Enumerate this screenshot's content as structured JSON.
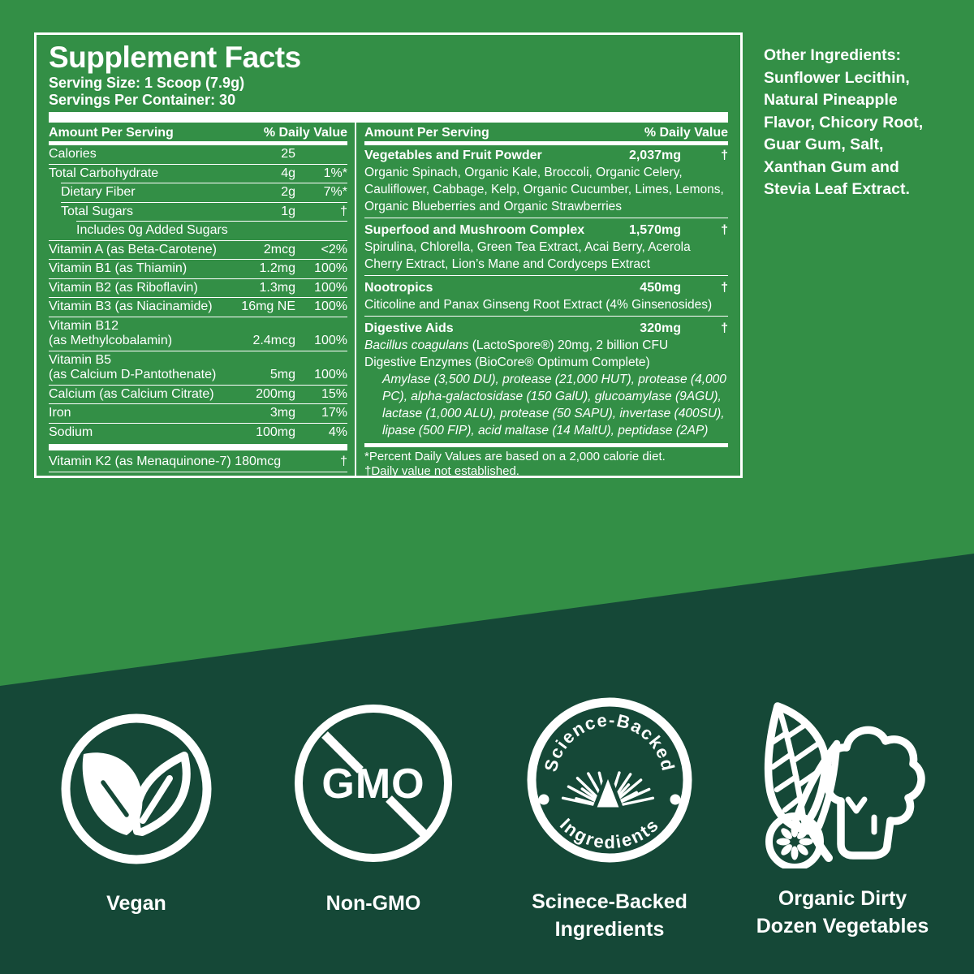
{
  "colors": {
    "background_green": "#338F46",
    "dark_green": "#154837",
    "white": "#FFFFFF"
  },
  "panel": {
    "title": "Supplement Facts",
    "serving_size": "Serving Size: 1 Scoop (7.9g)",
    "servings_per_container": "Servings Per Container: 30",
    "col_header_amount": "Amount Per Serving",
    "col_header_dv": "% Daily Value",
    "left_rows": [
      {
        "name": "Calories",
        "amount": "25",
        "dv": ""
      },
      {
        "name": "Total Carbohydrate",
        "amount": "4g",
        "dv": "1%*"
      },
      {
        "name": "Dietary Fiber",
        "amount": "2g",
        "dv": "7%*"
      },
      {
        "name": "Total Sugars",
        "amount": "1g",
        "dv": "†"
      },
      {
        "name": "Includes 0g Added Sugars",
        "amount": "",
        "dv": ""
      },
      {
        "name": "Vitamin A (as Beta-Carotene)",
        "amount": "2mcg",
        "dv": "<2%"
      },
      {
        "name": "Vitamin B1 (as Thiamin)",
        "amount": "1.2mg",
        "dv": "100%"
      },
      {
        "name": "Vitamin B2 (as Riboflavin)",
        "amount": "1.3mg",
        "dv": "100%"
      },
      {
        "name": "Vitamin B3 (as Niacinamide)",
        "amount": "16mg NE",
        "dv": "100%"
      },
      {
        "name": "Vitamin B12\n(as Methylcobalamin)",
        "amount": "2.4mcg",
        "dv": "100%"
      },
      {
        "name": "Vitamin B5\n(as Calcium D-Pantothenate)",
        "amount": "5mg",
        "dv": "100%"
      },
      {
        "name": "Calcium (as Calcium Citrate)",
        "amount": "200mg",
        "dv": "15%"
      },
      {
        "name": "Iron",
        "amount": "3mg",
        "dv": "17%"
      },
      {
        "name": "Sodium",
        "amount": "100mg",
        "dv": "4%"
      }
    ],
    "vitamin_k2": {
      "name": "Vitamin K2 (as Menaquinone-7) 180mcg",
      "dv": "†"
    },
    "right_groups": [
      {
        "title": "Vegetables and Fruit Powder",
        "amount": "2,037mg",
        "dv": "†",
        "desc": "Organic Spinach, Organic Kale, Broccoli, Organic Celery, Cauliflower, Cabbage, Kelp, Organic Cucumber, Limes, Lemons, Organic Blueberries and Organic Strawberries"
      },
      {
        "title": "Superfood and Mushroom Complex",
        "amount": "1,570mg",
        "dv": "†",
        "desc": "Spirulina, Chlorella, Green Tea Extract, Acai Berry, Acerola Cherry Extract, Lion’s Mane and Cordyceps Extract"
      },
      {
        "title": "Nootropics",
        "amount": "450mg",
        "dv": "†",
        "desc": "Citicoline and Panax Ginseng Root Extract (4% Ginsenosides)"
      },
      {
        "title": "Digestive Aids",
        "amount": "320mg",
        "dv": "†",
        "probiotic_italic": "Bacillus coagulans",
        "probiotic_rest": " (LactoSpore®) 20mg, 2 billion CFU",
        "enzymes_line": "Digestive Enzymes (BioCore® Optimum Complete)",
        "enzyme_details": "Amylase (3,500 DU), protease (21,000 HUT), protease (4,000 PC), alpha-galactosidase (150 GalU), glucoamylase (9AGU), lactase (1,000 ALU), protease (50 SAPU), invertase (400SU), lipase (500 FIP), acid maltase (14 MaltU), peptidase (2AP)"
      }
    ],
    "footnote1": "*Percent Daily Values are based on a 2,000 calorie diet.",
    "footnote2": "†Daily value not established."
  },
  "other_ingredients": "Other Ingredients:\nSunflower Lecithin,\nNatural Pineapple\nFlavor, Chicory Root,\nGuar Gum, Salt,\nXanthan Gum and\nStevia Leaf Extract.",
  "badges": {
    "vegan_label": "Vegan",
    "non_gmo_label": "Non-GMO",
    "gmo_icon_text": "GMO",
    "science_arc_top": "Science-Backed",
    "science_arc_bottom": "Ingredients",
    "science_label": "Scinece-Backed\nIngredients",
    "veggies_label": "Organic Dirty\nDozen Vegetables"
  }
}
